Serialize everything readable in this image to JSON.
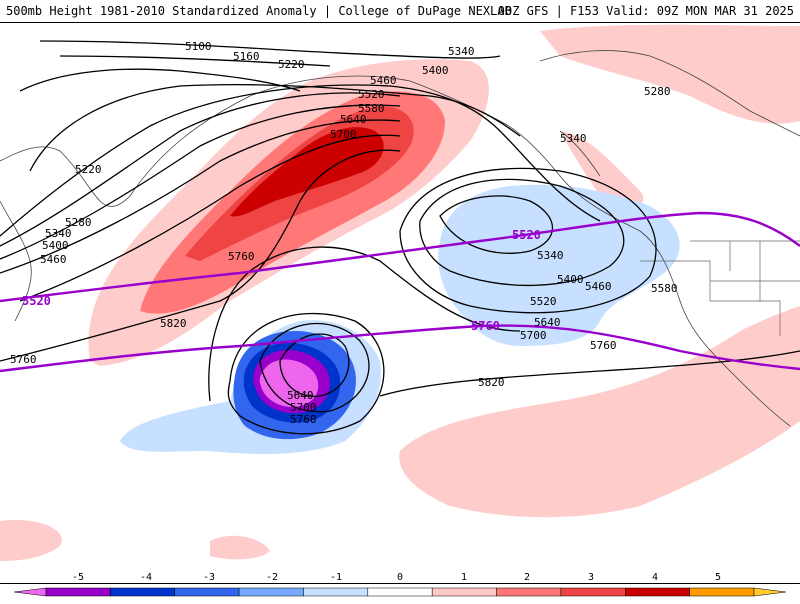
{
  "header": {
    "left_title": "500mb Height 1981-2010 Standardized Anomaly | College of DuPage NEXLAB",
    "right_title": "00Z GFS | F153 Valid: 09Z MON MAR 31 2025"
  },
  "contour_labels": {
    "black": [
      "5100",
      "5160",
      "5220",
      "5280",
      "5340",
      "5400",
      "5460",
      "5520",
      "5580",
      "5640",
      "5700",
      "5760",
      "5820"
    ],
    "purple": [
      "5520",
      "5760"
    ]
  },
  "colorbar": {
    "ticks": [
      "-5",
      "-4",
      "-3",
      "-2",
      "-1",
      "0",
      "1",
      "2",
      "3",
      "4",
      "5"
    ],
    "colors": [
      "#ee66ee",
      "#9900cc",
      "#0033cc",
      "#3366ee",
      "#77aaff",
      "#c8e0ff",
      "#ffffff",
      "#ffc8c8",
      "#ff7777",
      "#ee4444",
      "#cc0000",
      "#ff9900",
      "#ffcc33"
    ]
  }
}
